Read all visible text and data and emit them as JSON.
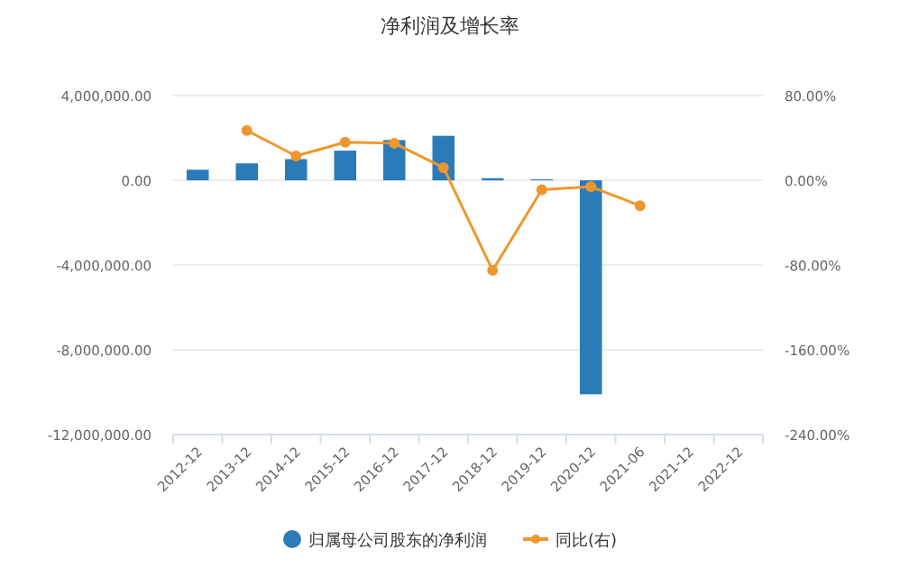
{
  "chart_data": {
    "type": "bar",
    "title": "净利润及增长率",
    "categories": [
      "2012-12",
      "2013-12",
      "2014-12",
      "2015-12",
      "2016-12",
      "2017-12",
      "2018-12",
      "2019-12",
      "2020-12",
      "2021-06",
      "2021-12",
      "2022-12"
    ],
    "series": [
      {
        "name": "归属母公司股东的净利润",
        "color": "#2b7bb9",
        "values": [
          500000,
          800000,
          1000000,
          1400000,
          1900000,
          2100000,
          100000,
          50000,
          -10100000,
          null,
          null,
          null
        ]
      },
      {
        "name": "同比(右)",
        "type": "line",
        "axis": "y2",
        "color": "#f0962e",
        "marker": "circle",
        "values": [
          null,
          47,
          23,
          36,
          35,
          12,
          -85,
          -9,
          -6,
          -24,
          null,
          null
        ]
      }
    ],
    "ylim": [
      -12000000,
      4000000
    ],
    "yticks": [
      {
        "value": -12000000,
        "label": "-12,000,000.00"
      },
      {
        "value": -8000000,
        "label": "-8,000,000.00"
      },
      {
        "value": -4000000,
        "label": "-4,000,000.00"
      },
      {
        "value": 0,
        "label": "0.00"
      },
      {
        "value": 4000000,
        "label": "4,000,000.00"
      }
    ],
    "y2lim": [
      -240,
      80
    ],
    "y2ticks": [
      {
        "value": -240,
        "label": "-240.00%"
      },
      {
        "value": -160,
        "label": "-160.00%"
      },
      {
        "value": -80,
        "label": "-80.00%"
      },
      {
        "value": 0,
        "label": "0.00%"
      },
      {
        "value": 80,
        "label": "80.00%"
      }
    ],
    "grid": "y",
    "legend": "bottom"
  }
}
